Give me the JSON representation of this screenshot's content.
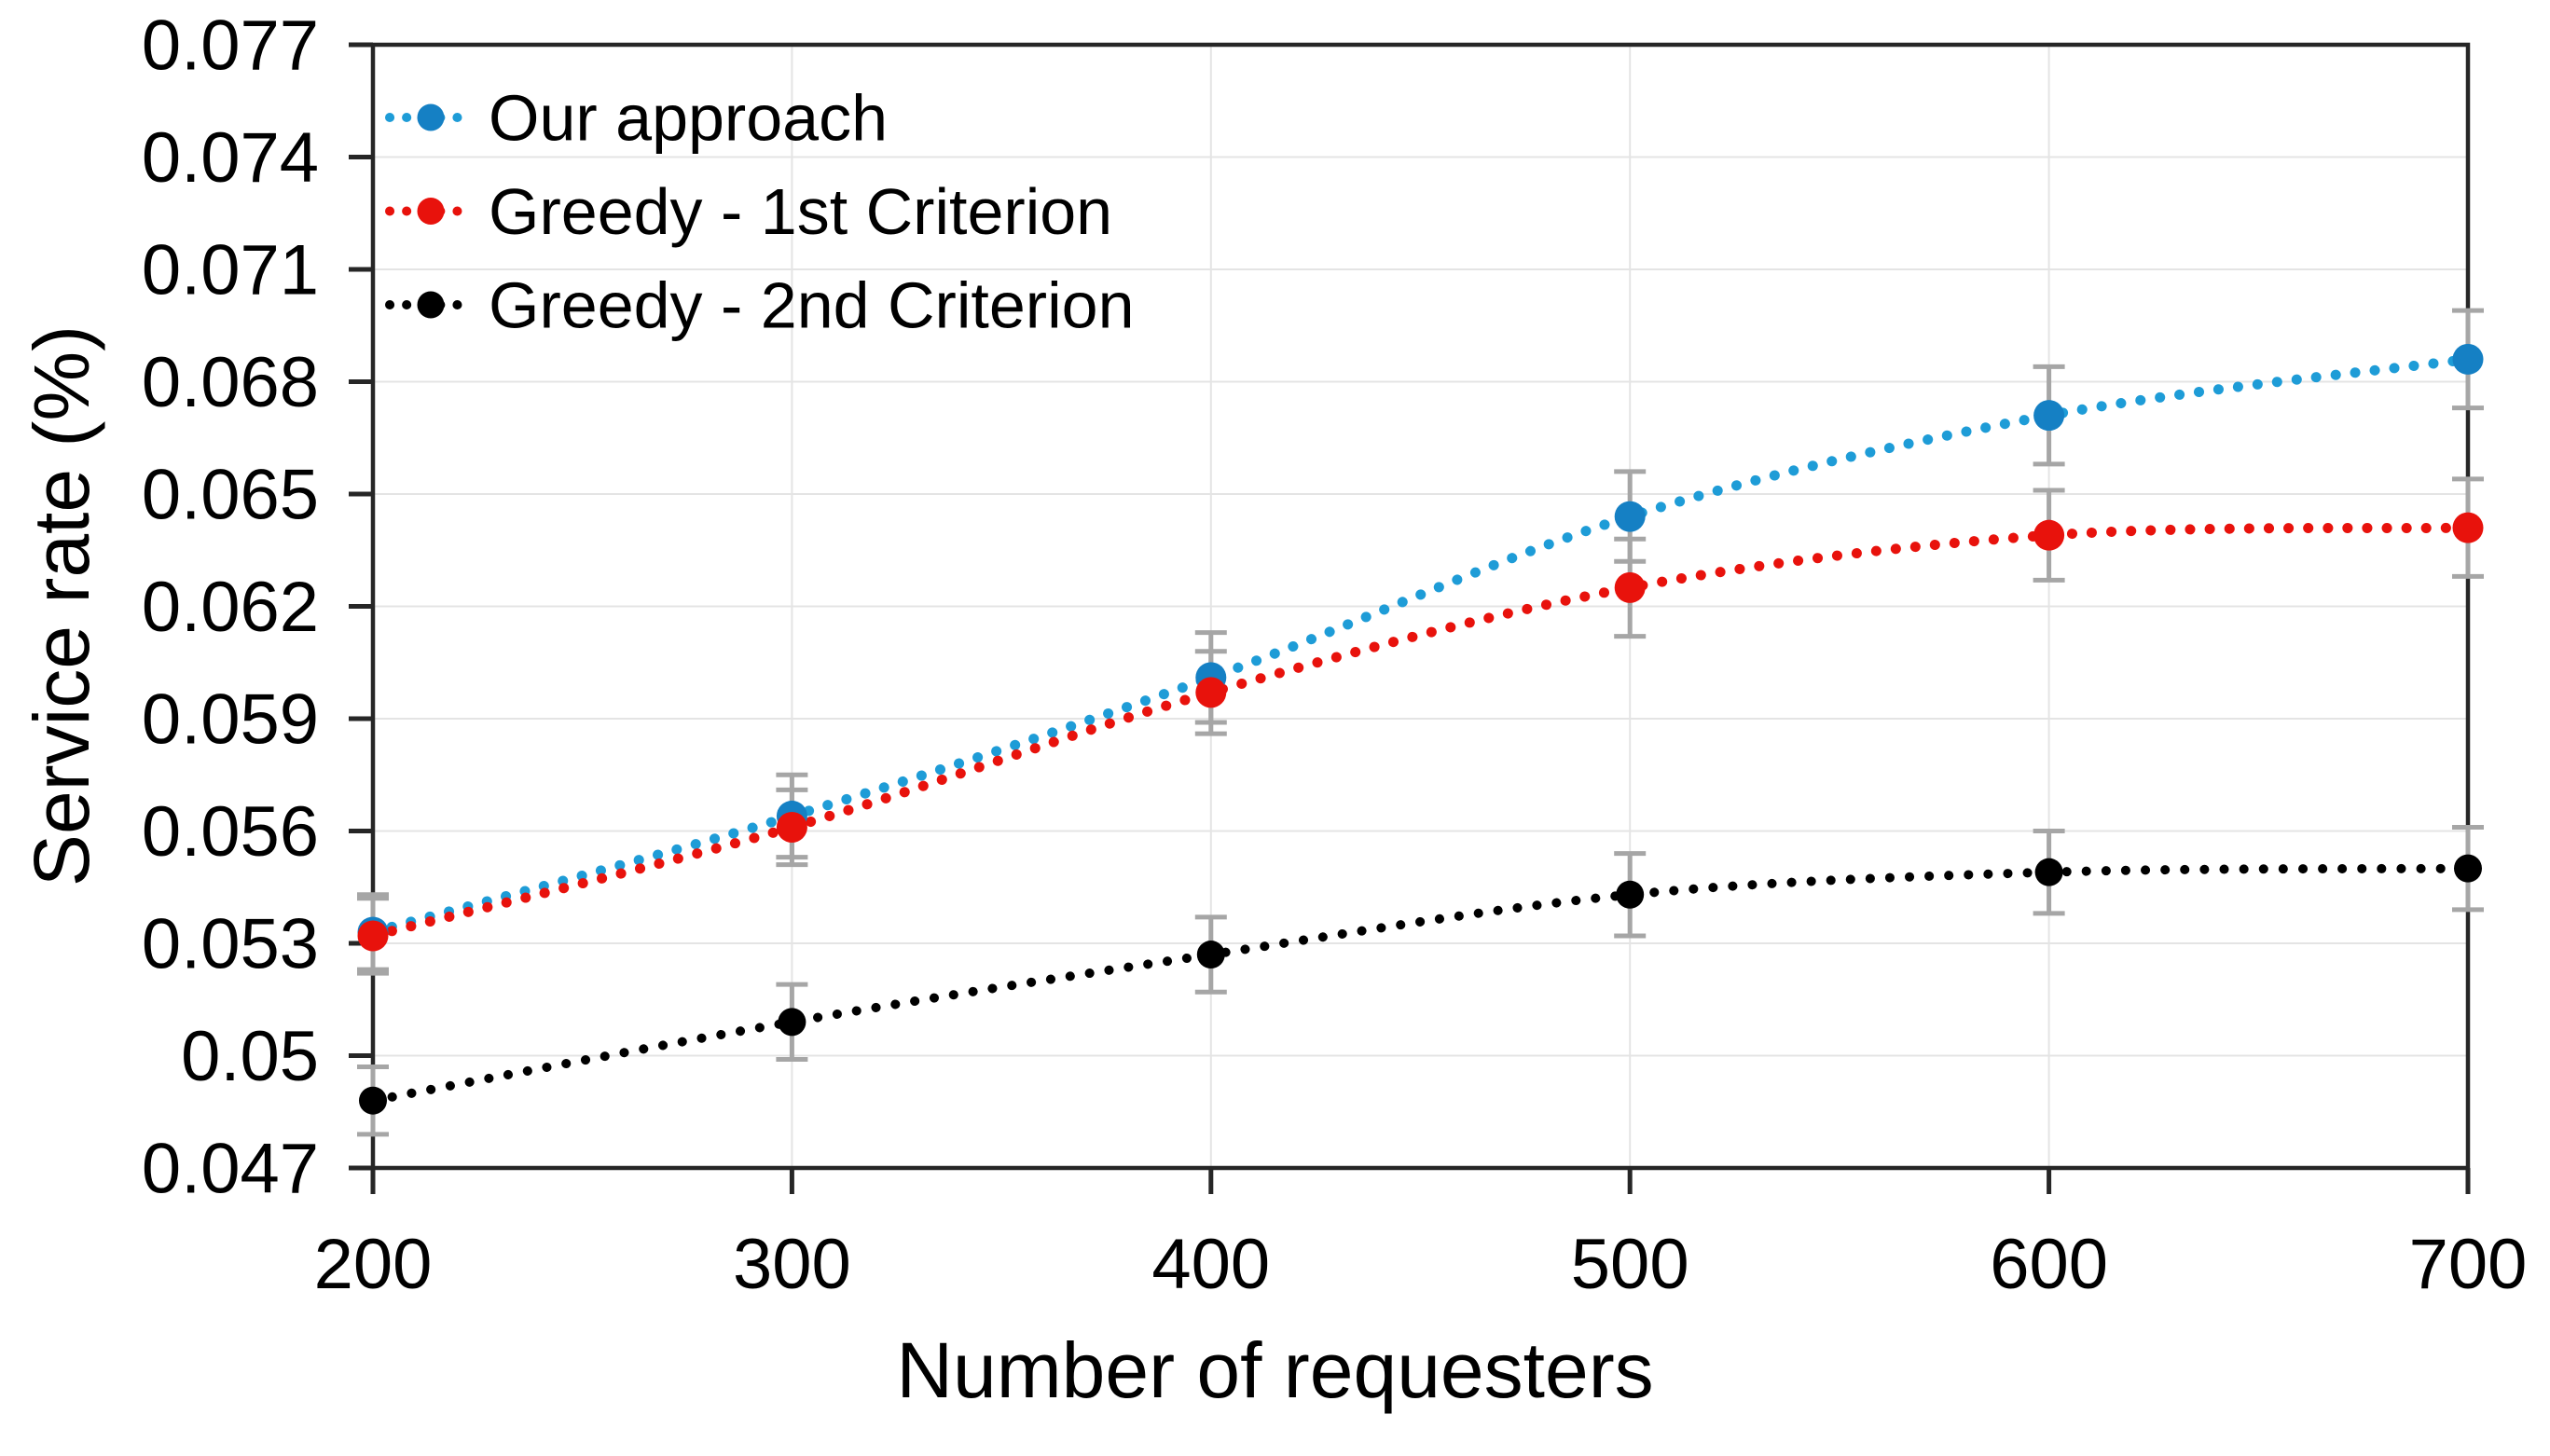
{
  "chart_data": {
    "type": "line",
    "title": "",
    "xlabel": "Number of requesters",
    "ylabel": "Service rate (%)",
    "x": [
      200,
      300,
      400,
      500,
      600,
      700
    ],
    "x_ticks": [
      "200",
      "300",
      "400",
      "500",
      "600",
      "700"
    ],
    "y_ticks": [
      "0.077",
      "0.074",
      "0.071",
      "0.068",
      "0.065",
      "0.062",
      "0.059",
      "0.056",
      "0.053",
      "0.05",
      "0.047"
    ],
    "xlim": [
      200,
      700
    ],
    "ylim": [
      0.047,
      0.077
    ],
    "grid": true,
    "legend_position": "top-left-inside",
    "line_style": "dotted",
    "error_bars": true,
    "series": [
      {
        "name": "Our approach",
        "line_color": "#1E9CD7",
        "marker_color": "#1580C4",
        "values": [
          0.0533,
          0.0564,
          0.0601,
          0.0644,
          0.0671,
          0.0686
        ],
        "errors": [
          0.001,
          0.0011,
          0.0012,
          0.0012,
          0.0013,
          0.0013
        ]
      },
      {
        "name": "Greedy - 1st Criterion",
        "line_color": "#E8120C",
        "marker_color": "#E8120C",
        "values": [
          0.0532,
          0.0561,
          0.0597,
          0.0625,
          0.0639,
          0.0641
        ],
        "errors": [
          0.001,
          0.001,
          0.0011,
          0.0013,
          0.0012,
          0.0013
        ]
      },
      {
        "name": "Greedy - 2nd Criterion",
        "line_color": "#000000",
        "marker_color": "#000000",
        "values": [
          0.0488,
          0.0509,
          0.0527,
          0.0543,
          0.0549,
          0.055
        ],
        "errors": [
          0.0009,
          0.001,
          0.001,
          0.0011,
          0.0011,
          0.0011
        ]
      }
    ],
    "colors": {
      "grid": "#E4E4E4",
      "axis": "#262626",
      "error_bar": "#A6A6A6",
      "text": "#000000",
      "background": "#FFFFFF"
    }
  }
}
